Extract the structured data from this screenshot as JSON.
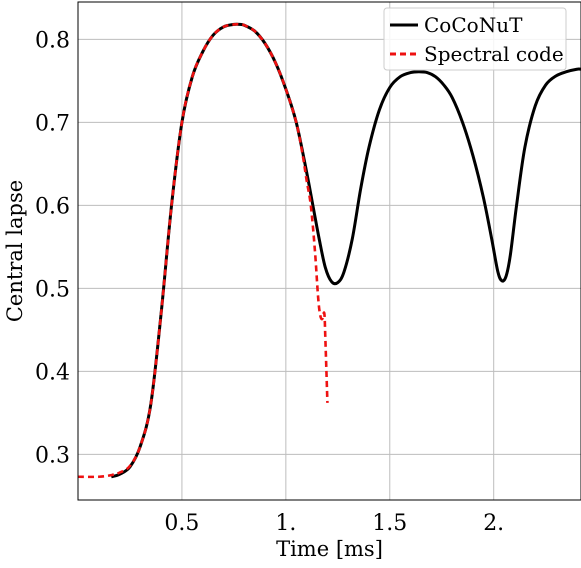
{
  "chart_data": {
    "type": "line",
    "xlabel": "Time [ms]",
    "ylabel": "Central lapse",
    "xlim": [
      0.0,
      2.42
    ],
    "ylim": [
      0.245,
      0.845
    ],
    "xticks": [
      0.5,
      1.0,
      1.5,
      2.0
    ],
    "xtick_labels": [
      "0.5",
      "1.",
      "1.5",
      "2."
    ],
    "yticks": [
      0.3,
      0.4,
      0.5,
      0.6,
      0.7,
      0.8
    ],
    "ytick_labels": [
      "0.3",
      "0.4",
      "0.5",
      "0.6",
      "0.7",
      "0.8"
    ],
    "grid": true,
    "legend_position": "top-right",
    "series": [
      {
        "name": "CoCoNuT",
        "color": "#000000",
        "style": "solid",
        "x": [
          0.16,
          0.2,
          0.25,
          0.3,
          0.35,
          0.4,
          0.45,
          0.5,
          0.55,
          0.6,
          0.65,
          0.7,
          0.75,
          0.78,
          0.8,
          0.85,
          0.9,
          0.95,
          1.0,
          1.05,
          1.1,
          1.13,
          1.16,
          1.19,
          1.22,
          1.25,
          1.28,
          1.32,
          1.36,
          1.4,
          1.45,
          1.5,
          1.55,
          1.6,
          1.64,
          1.68,
          1.72,
          1.76,
          1.8,
          1.85,
          1.9,
          1.95,
          1.99,
          2.02,
          2.04,
          2.06,
          2.08,
          2.11,
          2.15,
          2.2,
          2.25,
          2.3,
          2.35,
          2.4,
          2.42
        ],
        "y": [
          0.273,
          0.276,
          0.285,
          0.31,
          0.36,
          0.47,
          0.6,
          0.7,
          0.755,
          0.785,
          0.805,
          0.815,
          0.818,
          0.818,
          0.817,
          0.81,
          0.795,
          0.772,
          0.74,
          0.7,
          0.64,
          0.6,
          0.56,
          0.525,
          0.508,
          0.507,
          0.52,
          0.56,
          0.62,
          0.67,
          0.715,
          0.742,
          0.755,
          0.76,
          0.761,
          0.76,
          0.755,
          0.745,
          0.73,
          0.7,
          0.66,
          0.61,
          0.56,
          0.52,
          0.509,
          0.515,
          0.54,
          0.6,
          0.67,
          0.72,
          0.745,
          0.756,
          0.761,
          0.764,
          0.764
        ]
      },
      {
        "name": "Spectral code",
        "color": "#ee1111",
        "style": "dashed",
        "x": [
          0.0,
          0.1,
          0.16,
          0.2,
          0.25,
          0.3,
          0.35,
          0.4,
          0.45,
          0.5,
          0.55,
          0.6,
          0.65,
          0.7,
          0.75,
          0.78,
          0.8,
          0.85,
          0.9,
          0.95,
          1.0,
          1.05,
          1.08,
          1.1,
          1.12,
          1.14,
          1.155,
          1.165,
          1.175,
          1.185,
          1.19,
          1.2
        ],
        "y": [
          0.273,
          0.273,
          0.275,
          0.278,
          0.286,
          0.31,
          0.36,
          0.47,
          0.6,
          0.7,
          0.755,
          0.785,
          0.805,
          0.815,
          0.818,
          0.818,
          0.817,
          0.81,
          0.795,
          0.772,
          0.74,
          0.7,
          0.662,
          0.63,
          0.6,
          0.545,
          0.49,
          0.468,
          0.463,
          0.47,
          0.44,
          0.362
        ]
      }
    ]
  }
}
